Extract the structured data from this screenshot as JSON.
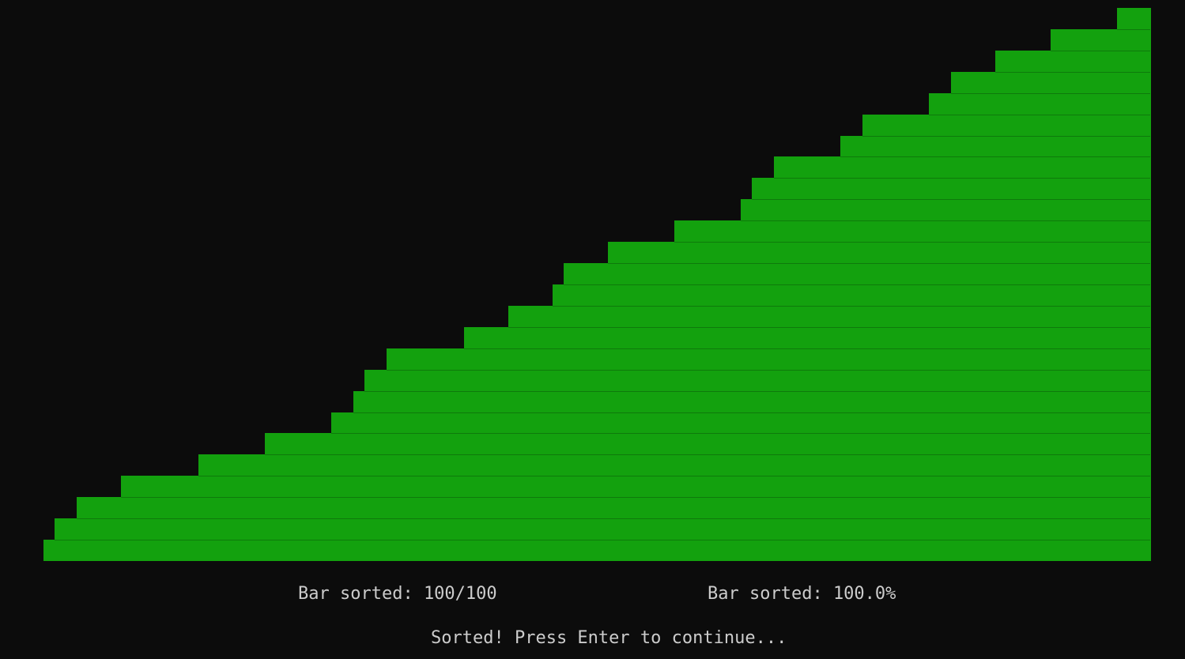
{
  "chart_data": {
    "type": "bar",
    "values": [
      1,
      2,
      2,
      3,
      3,
      3,
      3,
      4,
      4,
      4,
      4,
      4,
      4,
      4,
      5,
      5,
      5,
      5,
      5,
      5,
      6,
      6,
      6,
      6,
      6,
      6,
      7,
      7,
      8,
      9,
      9,
      10,
      10,
      10,
      10,
      10,
      10,
      10,
      11,
      11,
      11,
      11,
      12,
      12,
      12,
      12,
      13,
      14,
      14,
      14,
      14,
      15,
      15,
      15,
      15,
      15,
      15,
      16,
      16,
      16,
      16,
      16,
      16,
      17,
      18,
      18,
      19,
      19,
      19,
      19,
      19,
      19,
      20,
      20,
      21,
      21,
      21,
      21,
      21,
      21,
      22,
      22,
      23,
      23,
      23,
      23,
      24,
      24,
      24,
      24,
      24,
      25,
      25,
      25,
      25,
      25,
      25,
      26,
      26,
      26
    ],
    "ylim": [
      0,
      26
    ]
  },
  "status": {
    "bar_count": "Bar sorted: 100/100",
    "bar_percent": "Bar sorted: 100.0%",
    "prompt": "Sorted! Press Enter to continue..."
  },
  "colors": {
    "bar": "#13a10e",
    "background": "#0c0c0c",
    "text": "#cccccc"
  }
}
